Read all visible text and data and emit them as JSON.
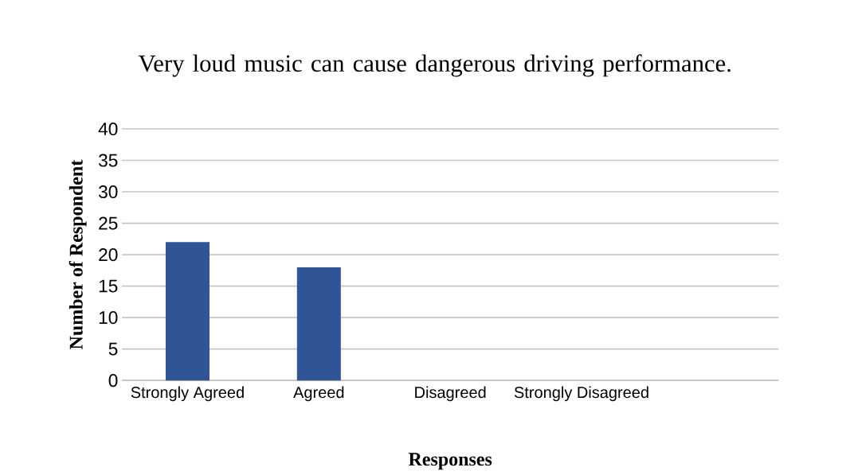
{
  "chart_data": {
    "type": "bar",
    "title": "Very loud music can cause dangerous driving performance.",
    "xlabel": "Responses",
    "ylabel": "Number of Respondent",
    "categories": [
      "Strongly Agreed",
      "Agreed",
      "Disagreed",
      "Strongly Disagreed",
      null
    ],
    "values": [
      22,
      18,
      0,
      0,
      null
    ],
    "color": "#2f5597",
    "ylim": [
      0,
      40
    ],
    "yticks": [
      0,
      5,
      10,
      15,
      20,
      25,
      30,
      35,
      40
    ],
    "grid": "y"
  }
}
